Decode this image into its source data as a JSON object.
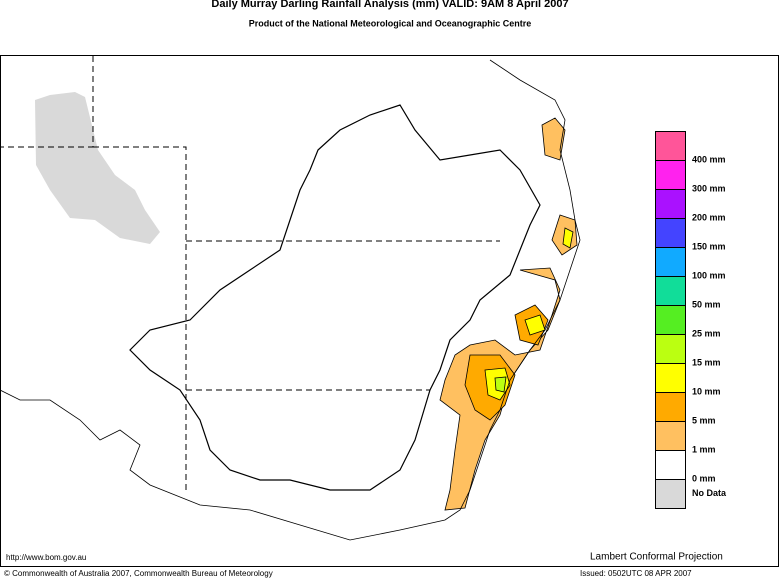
{
  "header": {
    "title": "Daily Murray Darling Rainfall Analysis (mm)  VALID: 9AM  8 April 2007",
    "subtitle": "Product of the National Meteorological and Oceanographic Centre"
  },
  "legend": {
    "colors": [
      "#ff5599",
      "#ff22ee",
      "#aa11ff",
      "#4444ff",
      "#11aaff",
      "#11dd99",
      "#55ee22",
      "#bbff11",
      "#ffff00",
      "#ffaa00",
      "#ffc060",
      "#ffffff",
      "#d9d9d9"
    ],
    "labels": [
      "400 mm",
      "300 mm",
      "200 mm",
      "150 mm",
      "100 mm",
      "50 mm",
      "25 mm",
      "15 mm",
      "10 mm",
      "5 mm",
      "1 mm",
      "0 mm",
      "No Data"
    ]
  },
  "footer": {
    "url": "http://www.bom.gov.au",
    "projection": "Lambert Conformal Projection",
    "copyright": "© Commonwealth of Australia 2007, Commonwealth Bureau of Meteorology",
    "issued": "Issued: 0502UTC 08 APR 2007"
  }
}
